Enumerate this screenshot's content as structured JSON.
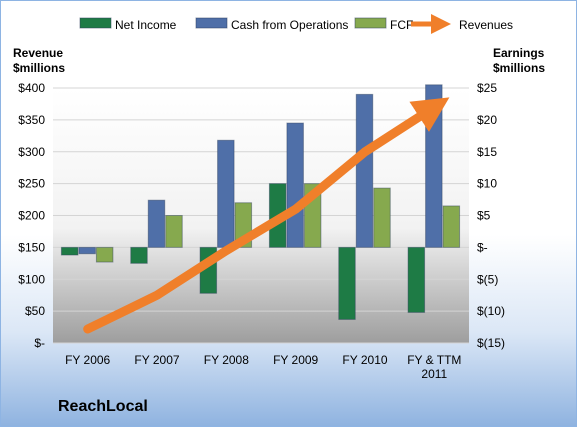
{
  "chart_data": {
    "type": "bar",
    "categories": [
      "FY 2006",
      "FY 2007",
      "FY 2008",
      "FY 2009",
      "FY 2010",
      [
        "FY & TTM",
        "2011"
      ]
    ],
    "series": [
      {
        "name": "Net Income",
        "axis": "right",
        "color": "#1e7b45",
        "values": [
          -1.2,
          -2.5,
          -7.2,
          10.0,
          -11.3,
          -10.2
        ]
      },
      {
        "name": "Cash from Operations",
        "axis": "right",
        "color": "#4f6fa8",
        "values": [
          -1.0,
          7.4,
          16.8,
          19.5,
          24.0,
          25.5
        ]
      },
      {
        "name": "FCF",
        "axis": "right",
        "color": "#86a94e",
        "values": [
          -2.3,
          5.0,
          7.0,
          10.0,
          9.3,
          6.5
        ]
      },
      {
        "name": "Revenues",
        "axis": "left",
        "type": "line",
        "color": "#f07f2a",
        "values": [
          22,
          75,
          145,
          210,
          300,
          370
        ]
      }
    ],
    "left_axis": {
      "title": [
        "Revenue",
        "$millions"
      ],
      "min": 0,
      "max": 400,
      "step": 50,
      "tick_labels": [
        "$-",
        "$50",
        "$100",
        "$150",
        "$200",
        "$250",
        "$300",
        "$350",
        "$400"
      ]
    },
    "right_axis": {
      "title": [
        "Earnings",
        "$millions"
      ],
      "min": -15,
      "max": 25,
      "step": 5,
      "tick_labels": [
        "$(15)",
        "$(10)",
        "$(5)",
        "$-",
        "$5",
        "$10",
        "$15",
        "$20",
        "$25"
      ]
    },
    "legend_position": "top",
    "grid": true,
    "company": "ReachLocal"
  }
}
